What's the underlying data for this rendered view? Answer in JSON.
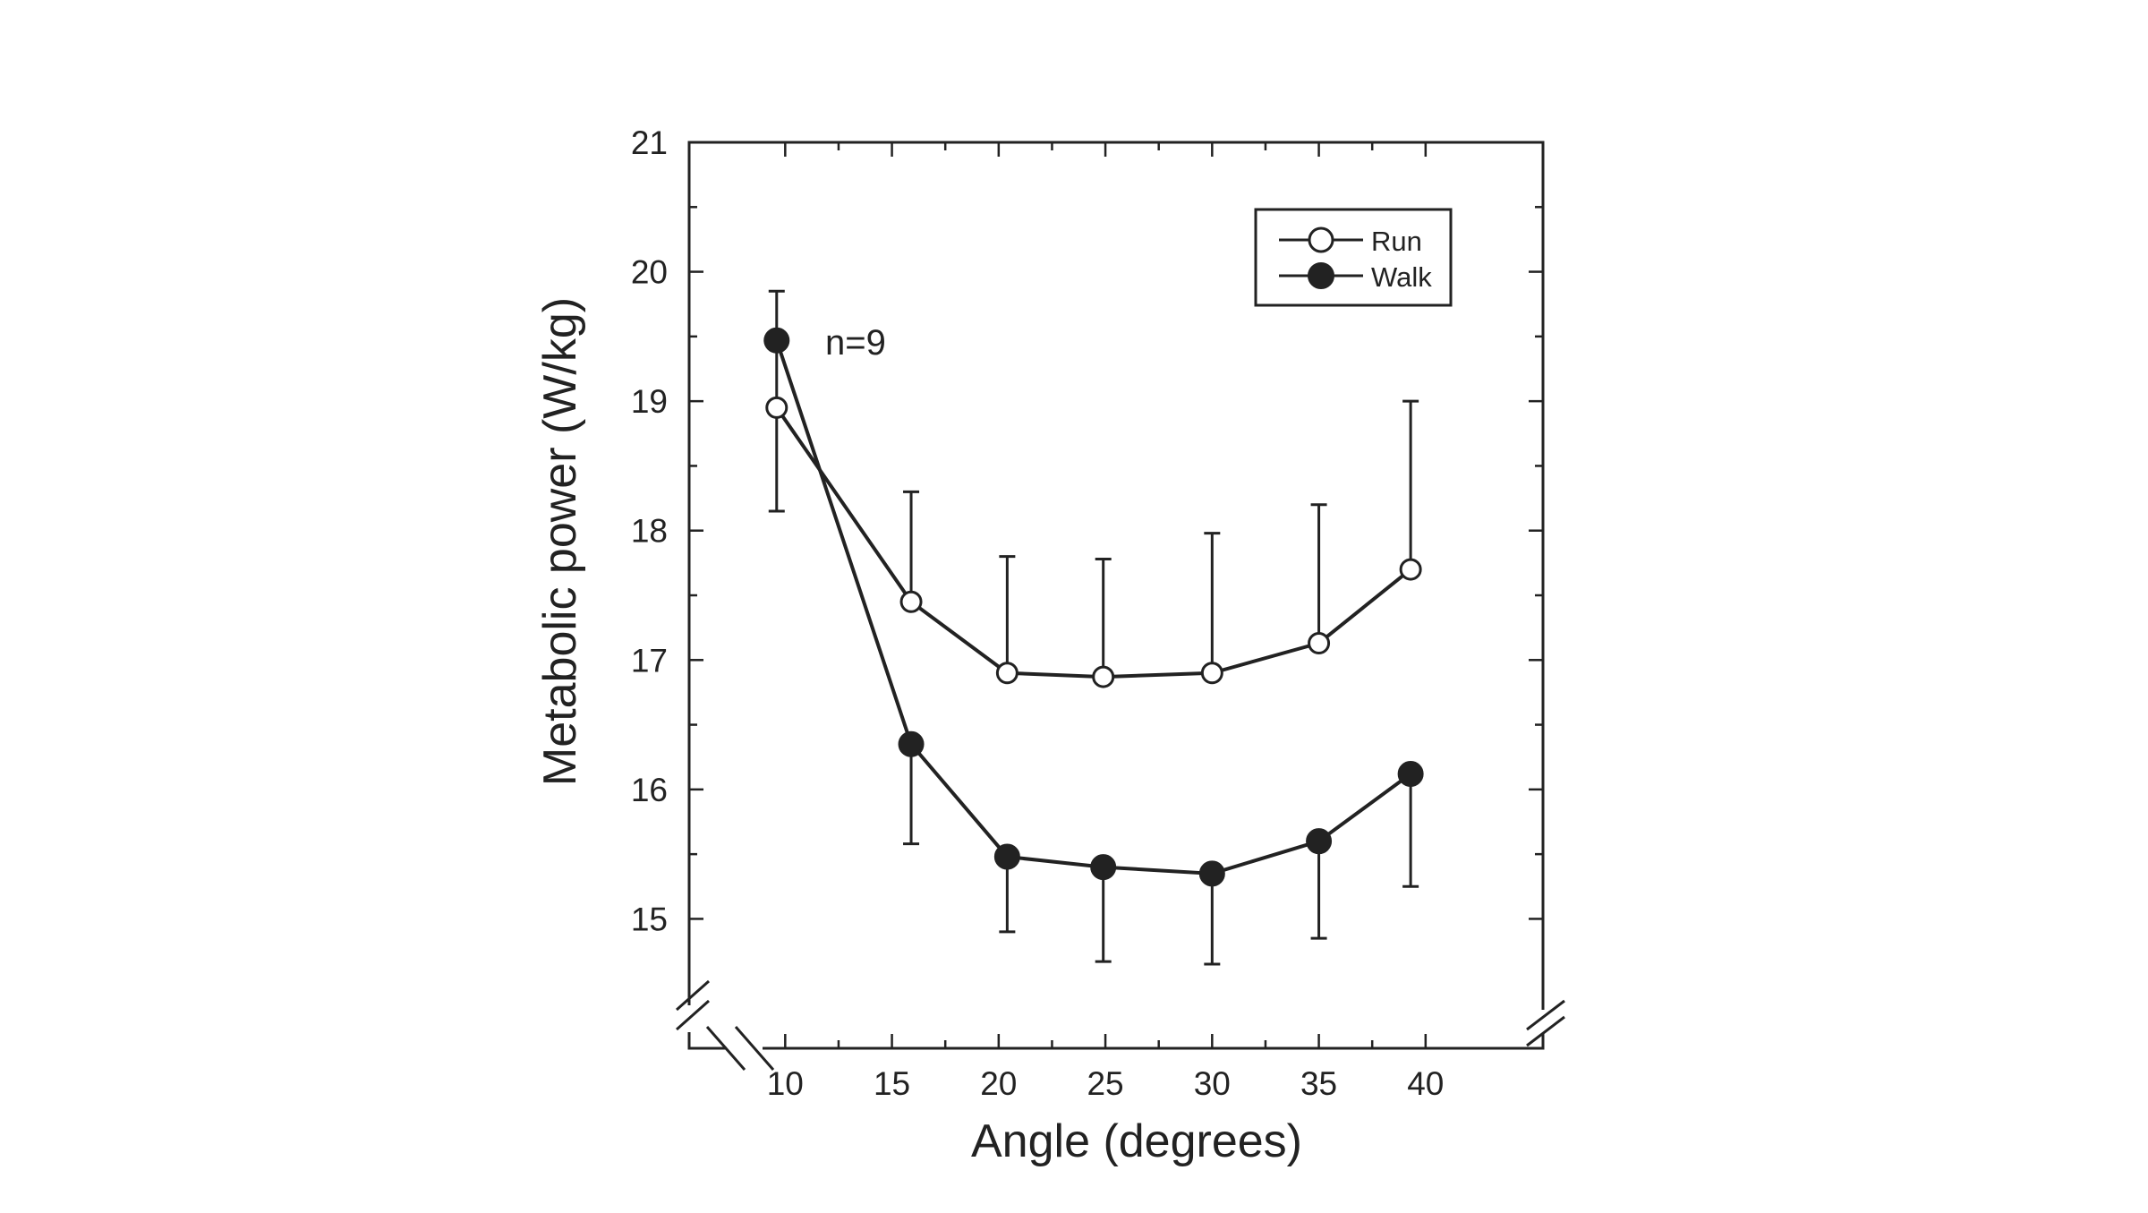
{
  "chart_data": {
    "type": "line",
    "title": "",
    "xlabel": "Angle (degrees)",
    "ylabel": "Metabolic power (W/kg)",
    "xlim": [
      5.5,
      45.5
    ],
    "ylim": [
      14.0,
      21.0
    ],
    "x_ticks": [
      10,
      15,
      20,
      25,
      30,
      35,
      40
    ],
    "y_ticks": [
      15,
      16,
      17,
      18,
      19,
      20,
      21
    ],
    "x_tick_labels": [
      "10",
      "15",
      "20",
      "25",
      "30",
      "35",
      "40"
    ],
    "y_tick_labels": [
      "15",
      "16",
      "17",
      "18",
      "19",
      "20",
      "21"
    ],
    "axis_breaks": true,
    "legend_position": "top-right",
    "annotation": "n=9",
    "series": [
      {
        "name": "Run",
        "marker": "open-circle",
        "x": [
          9.6,
          15.9,
          20.4,
          24.9,
          30.0,
          35.0,
          39.3
        ],
        "y": [
          18.95,
          17.45,
          16.9,
          16.87,
          16.9,
          17.13,
          17.7
        ],
        "error_upper": [
          19.85,
          18.3,
          17.8,
          17.78,
          17.98,
          18.2,
          19.0
        ],
        "error_lower": [
          18.15,
          null,
          null,
          null,
          null,
          null,
          null
        ]
      },
      {
        "name": "Walk",
        "marker": "filled-circle",
        "x": [
          9.6,
          15.9,
          20.4,
          24.9,
          30.0,
          35.0,
          39.3
        ],
        "y": [
          19.47,
          16.35,
          15.48,
          15.4,
          15.35,
          15.6,
          16.12
        ],
        "error_upper": [
          null,
          null,
          null,
          null,
          null,
          null,
          null
        ],
        "error_lower": [
          null,
          15.58,
          14.9,
          14.67,
          14.65,
          14.85,
          15.25
        ]
      }
    ]
  },
  "colors": {
    "line": "#222222",
    "background": "#ffffff",
    "open_marker_fill": "#ffffff"
  }
}
